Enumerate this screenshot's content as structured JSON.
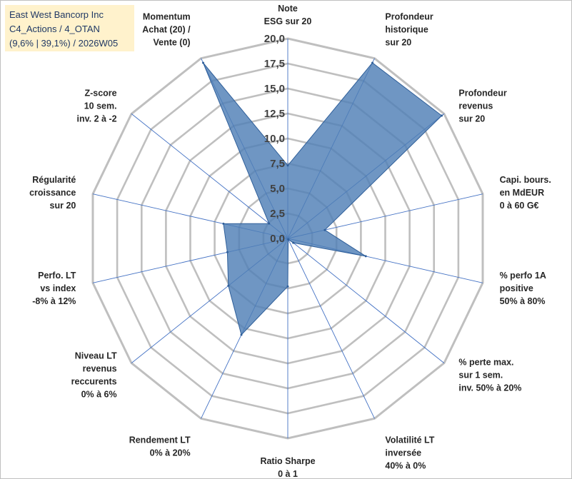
{
  "title": {
    "lines": [
      "East West Bancorp Inc",
      "C4_Actions / 4_OTAN",
      "(9,6% | 39,1%) / 2026W05"
    ]
  },
  "colors": {
    "series_fill": "#4f7fb6",
    "series_stroke": "#2f5f9a",
    "grid": "#bfbfbf",
    "spoke": "#4472c4",
    "title_bg": "#fff2cc",
    "title_text": "#1f3864"
  },
  "chart_data": {
    "type": "radar",
    "title": "East West Bancorp Inc",
    "rlim": [
      0,
      20
    ],
    "rticks": [
      "0,0",
      "2,5",
      "5,0",
      "7,5",
      "10,0",
      "12,5",
      "15,0",
      "17,5",
      "20,0"
    ],
    "categories": [
      [
        "Note",
        "ESG sur 20"
      ],
      [
        "Profondeur",
        "historique",
        "sur 20"
      ],
      [
        "Profondeur",
        "revenus",
        "sur 20"
      ],
      [
        "Capi. bours.",
        "en MdEUR",
        "0 à 60 G€"
      ],
      [
        "% perfo 1A",
        "positive",
        "50% à 80%"
      ],
      [
        "% perte max.",
        "sur 1 sem.",
        "inv. 50% à 20%"
      ],
      [
        "Volatilité LT",
        "inversée",
        "40% à 0%"
      ],
      [
        "Ratio Sharpe",
        "0 à 1"
      ],
      [
        "Rendement LT",
        "0% à 20%"
      ],
      [
        "Niveau LT",
        "revenus",
        "reccurents",
        "0% à 6%"
      ],
      [
        "Perfo. LT",
        "vs index",
        "-8% à 12%"
      ],
      [
        "Régularité",
        "croissance",
        "sur 20"
      ],
      [
        "Z-score",
        "10 sem.",
        "inv. 2 à -2"
      ],
      [
        "Momentum",
        "Achat (20) /",
        "Vente (0)"
      ]
    ],
    "series": [
      {
        "name": "East West Bancorp Inc",
        "values": [
          7.3,
          19.5,
          19.7,
          3.8,
          8.0,
          0.7,
          0.1,
          4.8,
          10.7,
          7.6,
          6.2,
          6.6,
          2.4,
          19.5
        ]
      }
    ]
  }
}
